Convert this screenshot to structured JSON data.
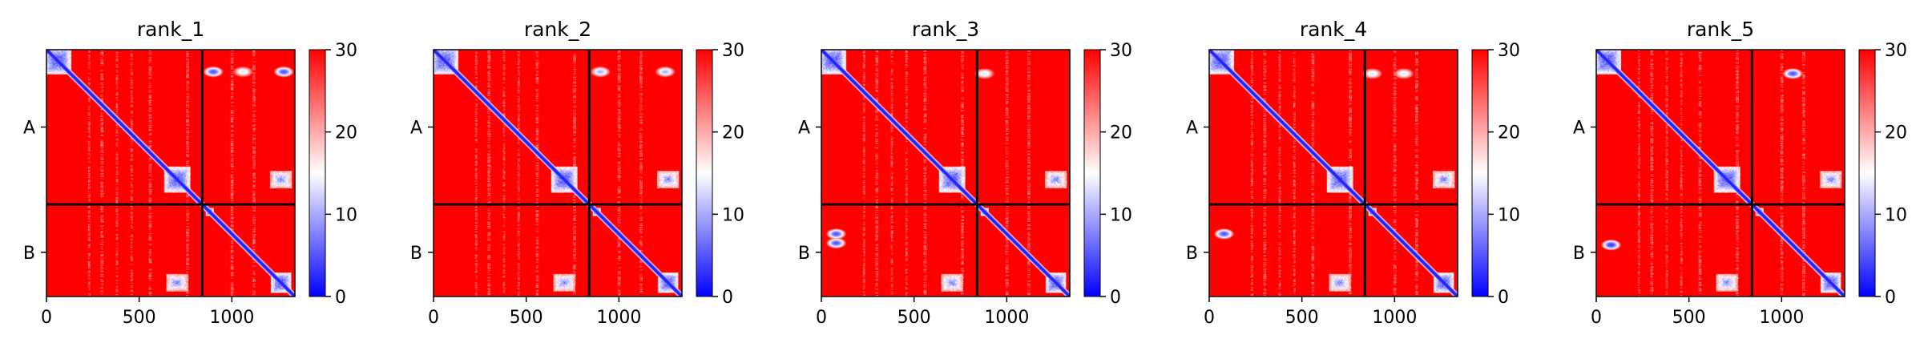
{
  "chart_data": {
    "type": "heatmap",
    "colormap": {
      "name": "bwr",
      "low": "#0000ff",
      "mid": "#ffffff",
      "high": "#ff0000",
      "vmin": 0,
      "vmax": 30
    },
    "colorbar_ticks": [
      "0",
      "10",
      "20",
      "30"
    ],
    "x_ticks": [
      {
        "value": 0,
        "label": "0"
      },
      {
        "value": 500,
        "label": "500"
      },
      {
        "value": 1000,
        "label": "1000"
      }
    ],
    "y_ticks": [
      {
        "value": 420,
        "label": "A"
      },
      {
        "value": 1100,
        "label": "B"
      }
    ],
    "xlim": [
      0,
      1340
    ],
    "ylim": [
      1340,
      0
    ],
    "chain_boundary": 840,
    "panels": [
      {
        "title": "rank_1",
        "spots": [
          [
            120,
            900,
            0.5,
            0.9
          ],
          [
            120,
            1280,
            0.5,
            0.9
          ],
          [
            120,
            1060,
            0.35,
            0.6
          ]
        ]
      },
      {
        "title": "rank_2",
        "spots": [
          [
            120,
            900,
            0.3,
            0.7
          ],
          [
            120,
            1250,
            0.3,
            0.7
          ]
        ]
      },
      {
        "title": "rank_3",
        "spots": [
          [
            1000,
            80,
            0.3,
            0.9
          ],
          [
            1050,
            80,
            0.3,
            0.9
          ],
          [
            130,
            880,
            0.3,
            0.6
          ]
        ]
      },
      {
        "title": "rank_4",
        "spots": [
          [
            1000,
            80,
            0.3,
            0.9
          ],
          [
            130,
            880,
            0.3,
            0.6
          ],
          [
            130,
            1050,
            0.3,
            0.6
          ]
        ]
      },
      {
        "title": "rank_5",
        "spots": [
          [
            1060,
            80,
            0.3,
            0.95
          ],
          [
            130,
            1060,
            0.4,
            0.9
          ]
        ]
      }
    ]
  }
}
